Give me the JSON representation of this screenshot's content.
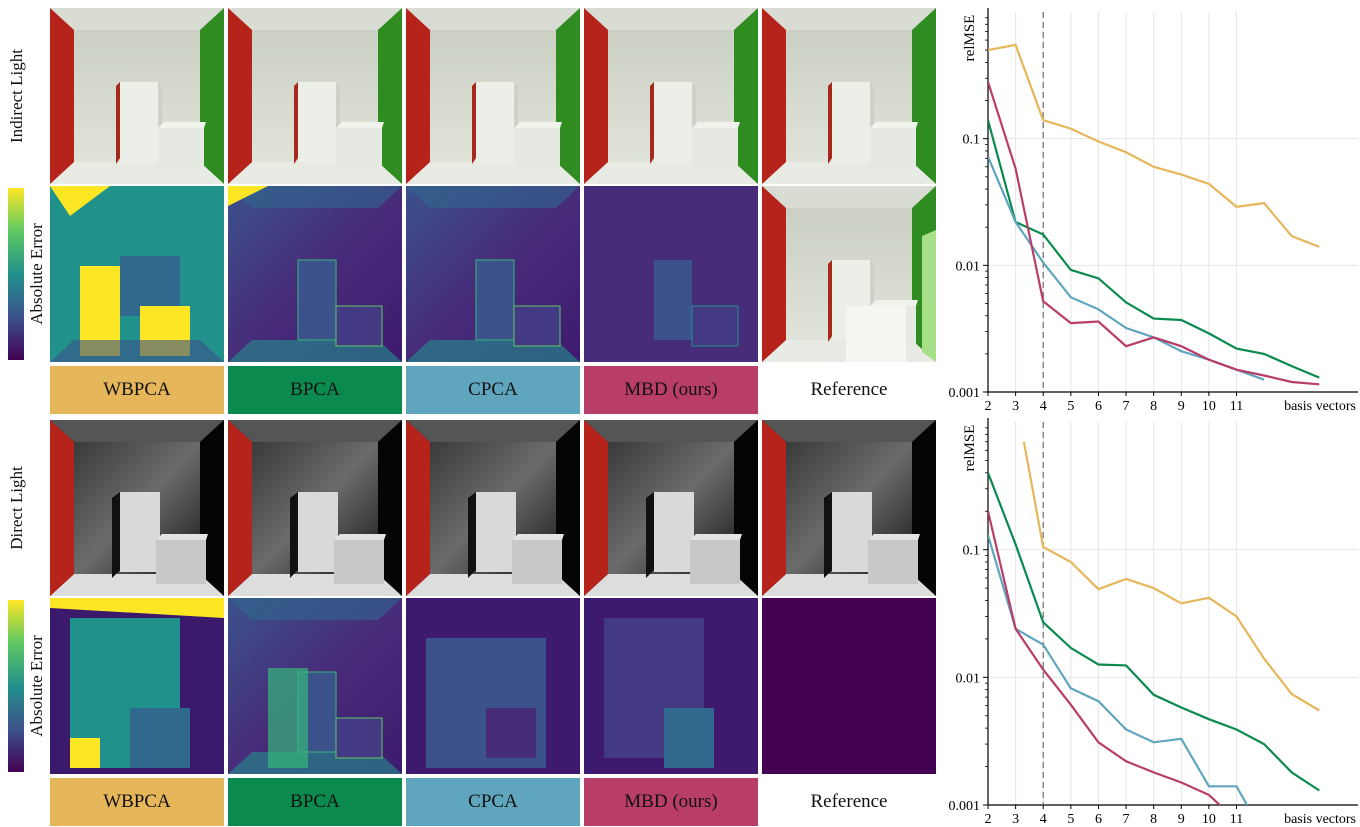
{
  "methods": [
    {
      "label": "WBPCA",
      "color": "#E6B65B"
    },
    {
      "label": "BPCA",
      "color": "#0A8A4F"
    },
    {
      "label": "CPCA",
      "color": "#5FA5BD"
    },
    {
      "label": "MBD (ours)",
      "color": "#B83D68"
    },
    {
      "label": "Reference",
      "color": "#FFFFFF"
    }
  ],
  "row_labels": {
    "indirect": "Indirect Light",
    "direct": "Direct Light",
    "error": "Absolute Error"
  },
  "chart_data": [
    {
      "type": "line",
      "ylabel": "relMSE",
      "xlabel": "basis vectors",
      "yscale": "log",
      "ylim": [
        0.001,
        1
      ],
      "xlim": [
        2,
        13
      ],
      "yticks": [
        "0.1",
        "0.01",
        "0.001"
      ],
      "xticks": [
        "2",
        "3",
        "4",
        "5",
        "6",
        "7",
        "8",
        "9",
        "10",
        "11"
      ],
      "vline_x": 4,
      "grid": true,
      "series": [
        {
          "method": "WBPCA",
          "color": "#E6B65B",
          "x": [
            2,
            3,
            4,
            5,
            6,
            7,
            8,
            9,
            10,
            11,
            12,
            13,
            14
          ],
          "y": [
            0.5,
            0.55,
            0.14,
            0.12,
            0.095,
            0.078,
            0.06,
            0.052,
            0.044,
            0.029,
            0.031,
            0.017,
            0.014
          ]
        },
        {
          "method": "BPCA",
          "color": "#0A8A4F",
          "x": [
            2,
            3,
            4,
            5,
            6,
            7,
            8,
            9,
            10,
            11,
            12,
            13,
            14
          ],
          "y": [
            0.14,
            0.022,
            0.0175,
            0.0092,
            0.0079,
            0.0051,
            0.0038,
            0.0037,
            0.0029,
            0.0022,
            0.002,
            0.0016,
            0.0013
          ]
        },
        {
          "method": "CPCA",
          "color": "#5FA5BD",
          "x": [
            2,
            3,
            4,
            5,
            6,
            7,
            8,
            9,
            10,
            11,
            12
          ],
          "y": [
            0.072,
            0.022,
            0.0105,
            0.0056,
            0.0045,
            0.0032,
            0.0027,
            0.0021,
            0.0018,
            0.0015,
            0.00125
          ]
        },
        {
          "method": "MBD (ours)",
          "color": "#B83D68",
          "x": [
            2,
            3,
            4,
            5,
            6,
            7,
            8,
            9,
            10,
            11,
            12,
            13,
            14
          ],
          "y": [
            0.28,
            0.058,
            0.0052,
            0.0035,
            0.0036,
            0.0023,
            0.0027,
            0.0023,
            0.0018,
            0.0015,
            0.00135,
            0.0012,
            0.00115
          ]
        }
      ]
    },
    {
      "type": "line",
      "ylabel": "relMSE",
      "xlabel": "basis vectors",
      "yscale": "log",
      "ylim": [
        0.001,
        1
      ],
      "xlim": [
        2,
        13
      ],
      "yticks": [
        "0.1",
        "0.01",
        "0.001"
      ],
      "xticks": [
        "2",
        "3",
        "4",
        "5",
        "6",
        "7",
        "8",
        "9",
        "10",
        "11"
      ],
      "vline_x": 4,
      "grid": true,
      "series": [
        {
          "method": "WBPCA",
          "color": "#E6B65B",
          "x": [
            3.3,
            4,
            5,
            6,
            7,
            8,
            9,
            10,
            11,
            12,
            13,
            14
          ],
          "y": [
            0.7,
            0.105,
            0.08,
            0.049,
            0.059,
            0.05,
            0.038,
            0.042,
            0.03,
            0.014,
            0.0074,
            0.0055
          ]
        },
        {
          "method": "BPCA",
          "color": "#0A8A4F",
          "x": [
            2,
            3,
            4,
            5,
            6,
            7,
            8,
            9,
            10,
            11,
            12,
            13,
            14
          ],
          "y": [
            0.4,
            0.11,
            0.027,
            0.017,
            0.0126,
            0.0124,
            0.0073,
            0.0058,
            0.0047,
            0.0039,
            0.003,
            0.0018,
            0.0013
          ]
        },
        {
          "method": "CPCA",
          "color": "#5FA5BD",
          "x": [
            2,
            3,
            4,
            5,
            6,
            7,
            8,
            9,
            10,
            11,
            11.5
          ],
          "y": [
            0.13,
            0.024,
            0.018,
            0.0082,
            0.0065,
            0.0039,
            0.0031,
            0.0033,
            0.0014,
            0.0014,
            0.0009
          ]
        },
        {
          "method": "MBD (ours)",
          "color": "#B83D68",
          "x": [
            2,
            3,
            4,
            5,
            6,
            7,
            8,
            9,
            10,
            10.5
          ],
          "y": [
            0.2,
            0.024,
            0.0115,
            0.0061,
            0.0031,
            0.0022,
            0.0018,
            0.0015,
            0.0012,
            0.00095
          ]
        }
      ]
    }
  ]
}
